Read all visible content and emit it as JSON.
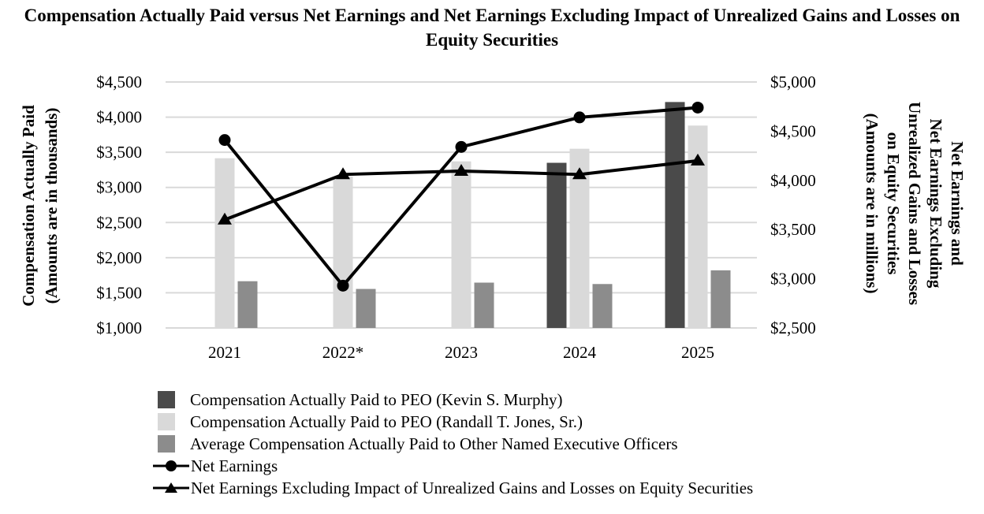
{
  "chart_data": {
    "type": "bar+line",
    "title": "Compensation Actually Paid versus Net Earnings and Net Earnings Excluding Impact of Unrealized Gains and Losses on Equity Securities",
    "categories": [
      "2021",
      "2022*",
      "2023",
      "2024",
      "2025"
    ],
    "left_axis": {
      "label_line1": "Compensation Actually Paid",
      "label_line2": "(Amounts are in thousands)",
      "min": 1000,
      "max": 4500,
      "step": 500,
      "ticks": [
        "$1,000",
        "$1,500",
        "$2,000",
        "$2,500",
        "$3,000",
        "$3,500",
        "$4,000",
        "$4,500"
      ]
    },
    "right_axis": {
      "label_lines": [
        "Net Earnings and",
        "Net Earnings Excluding",
        "Unrealized Gains and Losses",
        "on Equity Securities",
        "(Amounts are in millions)"
      ],
      "min": 2500,
      "max": 5000,
      "step": 500,
      "ticks": [
        "$2,500",
        "$3,000",
        "$3,500",
        "$4,000",
        "$4,500",
        "$5,000"
      ]
    },
    "bar_series": [
      {
        "name": "Compensation Actually Paid to PEO (Kevin S. Murphy)",
        "color": "#4a4a4a",
        "values": [
          null,
          null,
          null,
          3350,
          4215
        ]
      },
      {
        "name": "Compensation Actually Paid to PEO (Randall T. Jones, Sr.)",
        "color": "#d9d9d9",
        "values": [
          3415,
          3155,
          3370,
          3550,
          3880
        ]
      },
      {
        "name": "Average Compensation Actually Paid to Other Named Executive Officers",
        "color": "#8c8c8c",
        "values": [
          1665,
          1555,
          1645,
          1625,
          1820
        ]
      }
    ],
    "line_series": [
      {
        "name": "Net Earnings",
        "marker": "circle",
        "axis": "right",
        "values": [
          4410,
          2930,
          4340,
          4640,
          4740
        ]
      },
      {
        "name": "Net Earnings Excluding Impact of Unrealized Gains and Losses on Equity Securities",
        "marker": "triangle",
        "axis": "right",
        "values": [
          3600,
          4060,
          4095,
          4060,
          4200
        ]
      }
    ],
    "grid": true,
    "legend_position": "bottom"
  }
}
